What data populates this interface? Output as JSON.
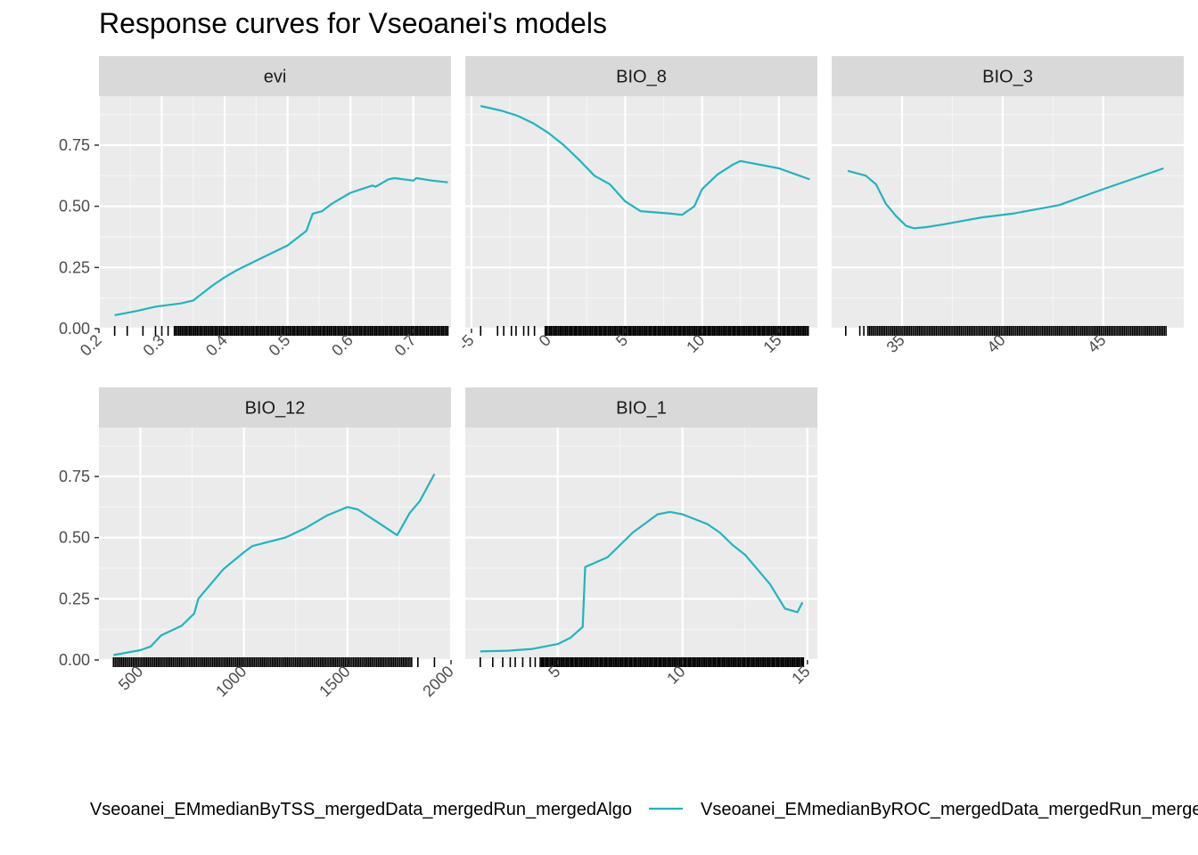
{
  "title": "Response curves for Vseoanei's models",
  "colors": {
    "panel_bg": "#EBEBEB",
    "strip_bg": "#D9D9D9",
    "grid_major": "#FFFFFF",
    "grid_minor": "#F5F5F5",
    "series_tss": "#F8766D",
    "series_roc": "#1FB5C0",
    "rug": "#000000"
  },
  "legend": {
    "position": "bottom",
    "entries": [
      "Vseoanei_EMmedianByTSS_mergedData_mergedRun_mergedAlgo",
      "Vseoanei_EMmedianByROC_mergedData_mergedRun_mergedAlgo"
    ]
  },
  "chart_data": [
    {
      "type": "line",
      "facet": "evi",
      "ylim": [
        0,
        0.95
      ],
      "yticks": [
        0,
        0.25,
        0.5,
        0.75
      ],
      "ytick_labels": [
        "0.00",
        "0.25",
        "0.50",
        "0.75"
      ],
      "xlim": [
        0.2,
        0.76
      ],
      "xticks": [
        0.2,
        0.3,
        0.4,
        0.5,
        0.6,
        0.7
      ],
      "xtick_labels": [
        "0.2",
        "0.3",
        "0.4",
        "0.5",
        "0.6",
        "0.7"
      ],
      "rug": {
        "dense_from": 0.32,
        "dense_to": 0.755,
        "sparse": [
          0.225,
          0.245,
          0.27,
          0.29,
          0.3,
          0.31
        ]
      },
      "series": [
        {
          "name": "Vseoanei_EMmedianByROC_mergedData_mergedRun_mergedAlgo",
          "x": [
            0.225,
            0.26,
            0.29,
            0.33,
            0.35,
            0.38,
            0.4,
            0.42,
            0.46,
            0.5,
            0.51,
            0.53,
            0.54,
            0.555,
            0.57,
            0.6,
            0.635,
            0.64,
            0.66,
            0.67,
            0.7,
            0.705,
            0.73,
            0.755
          ],
          "y": [
            0.055,
            0.072,
            0.09,
            0.103,
            0.115,
            0.175,
            0.21,
            0.24,
            0.29,
            0.34,
            0.36,
            0.4,
            0.47,
            0.48,
            0.51,
            0.555,
            0.585,
            0.58,
            0.61,
            0.615,
            0.605,
            0.615,
            0.605,
            0.598
          ]
        }
      ]
    },
    {
      "type": "line",
      "facet": "BIO_8",
      "ylim": [
        0,
        0.95
      ],
      "yticks": [
        0,
        0.25,
        0.5,
        0.75
      ],
      "xlim": [
        -5.4,
        17.5
      ],
      "xticks": [
        -5,
        0,
        5,
        10,
        15
      ],
      "xtick_labels": [
        "-5",
        "0",
        "5",
        "10",
        "15"
      ],
      "rug": {
        "dense_from": -0.2,
        "dense_to": 17,
        "sparse": [
          -4.4,
          -3.3,
          -2.9,
          -2.4,
          -2.1,
          -1.6,
          -1.3,
          -0.9
        ]
      },
      "series": [
        {
          "name": "Vseoanei_EMmedianByROC_mergedData_mergedRun_mergedAlgo",
          "x": [
            -4.4,
            -3,
            -2,
            -1,
            0,
            1,
            2,
            3,
            4,
            5,
            6,
            8,
            8.7,
            9.5,
            10,
            11,
            12,
            12.5,
            15,
            17
          ],
          "y": [
            0.91,
            0.89,
            0.87,
            0.84,
            0.8,
            0.75,
            0.69,
            0.625,
            0.59,
            0.52,
            0.48,
            0.47,
            0.465,
            0.5,
            0.57,
            0.63,
            0.67,
            0.685,
            0.655,
            0.61
          ]
        }
      ]
    },
    {
      "type": "line",
      "facet": "BIO_3",
      "ylim": [
        0,
        0.95
      ],
      "yticks": [
        0,
        0.25,
        0.5,
        0.75
      ],
      "xlim": [
        31.5,
        49
      ],
      "xticks": [
        35,
        40,
        45
      ],
      "xtick_labels": [
        "35",
        "40",
        "45"
      ],
      "rug": {
        "dense_from": 33.3,
        "dense_to": 48.2,
        "sparse": [
          32.2,
          32.9,
          33.1
        ]
      },
      "series": [
        {
          "name": "Vseoanei_EMmedianByROC_mergedData_mergedRun_mergedAlgo",
          "x": [
            32.3,
            33.2,
            33.7,
            34.2,
            34.7,
            35.2,
            35.6,
            36.2,
            37,
            38,
            39,
            40.5,
            42.8,
            45,
            48
          ],
          "y": [
            0.645,
            0.625,
            0.59,
            0.51,
            0.46,
            0.42,
            0.41,
            0.415,
            0.425,
            0.44,
            0.455,
            0.47,
            0.505,
            0.57,
            0.655
          ]
        }
      ]
    },
    {
      "type": "line",
      "facet": "BIO_12",
      "ylim": [
        0,
        0.95
      ],
      "yticks": [
        0,
        0.25,
        0.5,
        0.75
      ],
      "ytick_labels": [
        "0.00",
        "0.25",
        "0.50",
        "0.75"
      ],
      "xlim": [
        300,
        2000
      ],
      "xticks": [
        500,
        1000,
        1500,
        2000
      ],
      "xtick_labels": [
        "500",
        "1000",
        "1500",
        "2000"
      ],
      "rug": {
        "dense_from": 370,
        "dense_to": 1810,
        "sparse": [
          1840,
          1920
        ]
      },
      "series": [
        {
          "name": "Vseoanei_EMmedianByROC_mergedData_mergedRun_mergedAlgo",
          "x": [
            370,
            500,
            550,
            600,
            700,
            760,
            780,
            830,
            900,
            1000,
            1040,
            1200,
            1300,
            1400,
            1500,
            1550,
            1650,
            1740,
            1800,
            1850,
            1920
          ],
          "y": [
            0.02,
            0.04,
            0.055,
            0.1,
            0.14,
            0.19,
            0.25,
            0.3,
            0.37,
            0.44,
            0.465,
            0.5,
            0.54,
            0.59,
            0.625,
            0.615,
            0.56,
            0.51,
            0.6,
            0.65,
            0.76
          ]
        }
      ]
    },
    {
      "type": "line",
      "facet": "BIO_1",
      "ylim": [
        0,
        0.95
      ],
      "yticks": [
        0,
        0.25,
        0.5,
        0.75
      ],
      "xlim": [
        1.3,
        15.4
      ],
      "xticks": [
        5,
        10,
        15
      ],
      "xtick_labels": [
        "5",
        "10",
        "15"
      ],
      "rug": {
        "dense_from": 4.3,
        "dense_to": 14.9,
        "sparse": [
          1.9,
          2.4,
          2.8,
          3.1,
          3.3,
          3.6,
          3.9,
          4.1
        ]
      },
      "series": [
        {
          "name": "Vseoanei_EMmedianByROC_mergedData_mergedRun_mergedAlgo",
          "x": [
            1.9,
            3,
            4,
            5,
            5.5,
            6,
            6.1,
            7,
            8,
            9,
            9.5,
            10,
            11,
            11.5,
            12,
            12.5,
            13,
            13.5,
            14.1,
            14.6,
            14.8
          ],
          "y": [
            0.035,
            0.038,
            0.045,
            0.065,
            0.09,
            0.135,
            0.38,
            0.42,
            0.52,
            0.595,
            0.605,
            0.595,
            0.555,
            0.52,
            0.47,
            0.43,
            0.37,
            0.31,
            0.21,
            0.195,
            0.235
          ]
        }
      ]
    }
  ]
}
